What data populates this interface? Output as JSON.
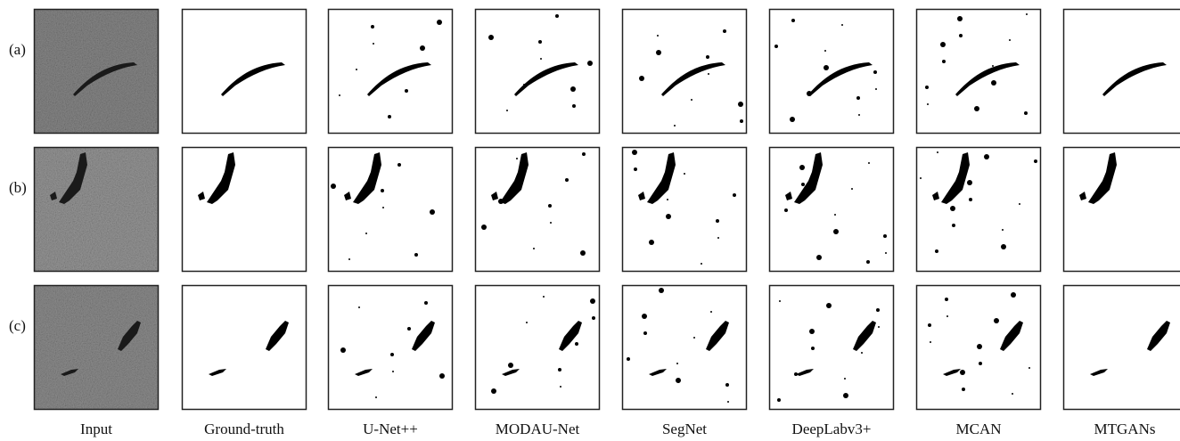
{
  "row_labels": [
    "(a)",
    "(b)",
    "(c)"
  ],
  "column_labels": [
    "Input",
    "Ground-truth",
    "U-Net++",
    "MODAU-Net",
    "SegNet",
    "DeepLabv3+",
    "MCAN",
    "MTGANs"
  ]
}
